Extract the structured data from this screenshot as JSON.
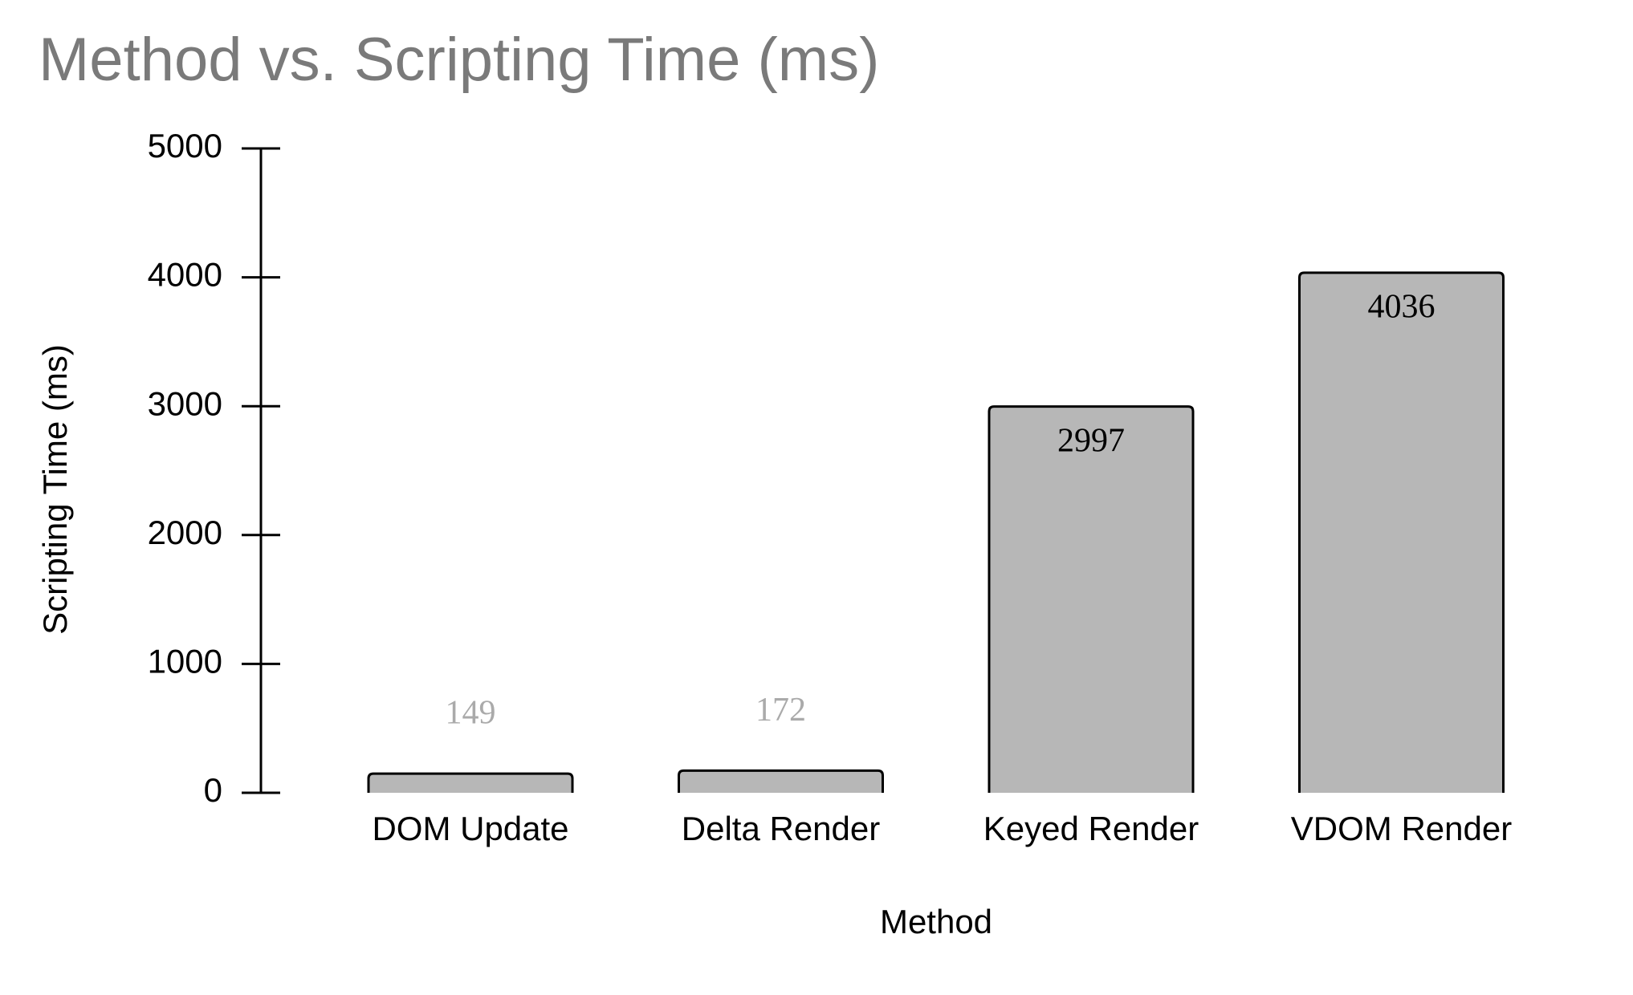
{
  "chart_data": {
    "type": "bar",
    "title": "Method vs. Scripting Time (ms)",
    "x_label": "Method",
    "y_label": "Scripting Time (ms)",
    "categories": [
      "DOM Update",
      "Delta Render",
      "Keyed Render",
      "VDOM Render"
    ],
    "values": [
      149,
      172,
      2997,
      4036
    ],
    "color": "#b7b7b7",
    "ylim": [
      0,
      5000
    ],
    "yticks": [
      0,
      1000,
      2000,
      3000,
      4000,
      5000
    ],
    "grid": false
  }
}
